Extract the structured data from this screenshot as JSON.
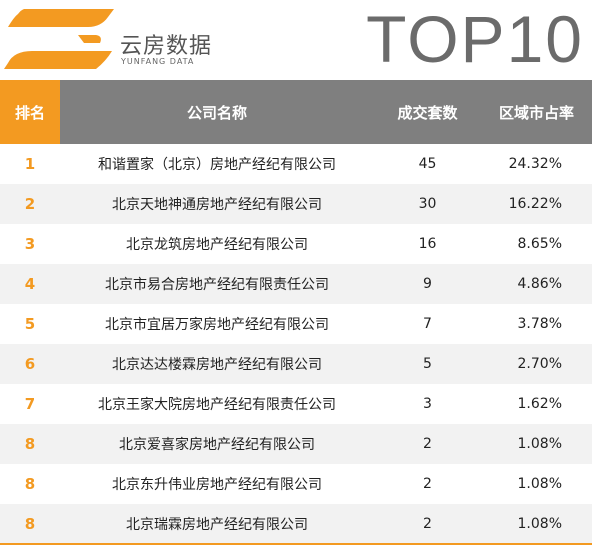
{
  "header": {
    "logo_icon": "yunfang-logo-mark",
    "brand_cn": "云房数据",
    "brand_en": "YUNFANG DATA",
    "title": "TOP10",
    "colors": {
      "accent": "#f39a21",
      "header_gray": "#7f7f7f",
      "title_gray": "#6b6b6b"
    }
  },
  "table": {
    "columns": [
      "排名",
      "公司名称",
      "成交套数",
      "区域市占率"
    ],
    "rows": [
      {
        "rank": "1",
        "company": "和谐置家（北京）房地产经纪有限公司",
        "deals": "45",
        "share": "24.32%"
      },
      {
        "rank": "2",
        "company": "北京天地神通房地产经纪有限公司",
        "deals": "30",
        "share": "16.22%"
      },
      {
        "rank": "3",
        "company": "北京龙筑房地产经纪有限公司",
        "deals": "16",
        "share": "8.65%"
      },
      {
        "rank": "4",
        "company": "北京市易合房地产经纪有限责任公司",
        "deals": "9",
        "share": "4.86%"
      },
      {
        "rank": "5",
        "company": "北京市宜居万家房地产经纪有限公司",
        "deals": "7",
        "share": "3.78%"
      },
      {
        "rank": "6",
        "company": "北京达达楼霖房地产经纪有限公司",
        "deals": "5",
        "share": "2.70%"
      },
      {
        "rank": "7",
        "company": "北京王家大院房地产经纪有限责任公司",
        "deals": "3",
        "share": "1.62%"
      },
      {
        "rank": "8",
        "company": "北京爱喜家房地产经纪有限公司",
        "deals": "2",
        "share": "1.08%"
      },
      {
        "rank": "8",
        "company": "北京东升伟业房地产经纪有限公司",
        "deals": "2",
        "share": "1.08%"
      },
      {
        "rank": "8",
        "company": "北京瑞霖房地产经纪有限公司",
        "deals": "2",
        "share": "1.08%"
      }
    ]
  }
}
